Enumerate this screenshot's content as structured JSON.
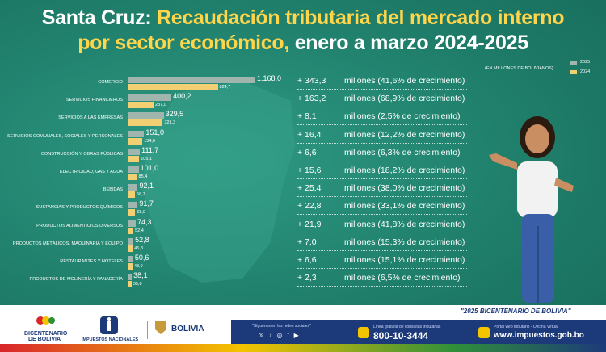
{
  "title": {
    "line1_white": "Santa Cruz:",
    "line1_yellow": "Recaudación tributaria del mercado interno",
    "line2_yellow": "por sector económico,",
    "line2_white": "enero a marzo 2024-2025"
  },
  "units": "(EN MILLONES DE BOLIVIANOS)",
  "legend": [
    {
      "label": "2025",
      "color": "#9fb5ae"
    },
    {
      "label": "2024",
      "color": "#f3cf73"
    }
  ],
  "chart_data": {
    "type": "bar",
    "orientation": "horizontal",
    "categories": [
      "COMERCIO",
      "SERVICIOS FINANCIEROS",
      "SERVICIOS A LAS EMPRESAS",
      "SERVICIOS COMUNALES, SOCIALES Y PERSONALES",
      "CONSTRUCCIÓN Y OBRAS PÚBLICAS",
      "ELECTRICIDAD, GAS Y AGUA",
      "BEBIDAS",
      "SUSTANCIAS Y PRODUCTOS QUÍMICOS",
      "PRODUCTOS ALIMENTICIOS DIVERSOS",
      "PRODUCTOS METÁLICOS, MAQUINARIA Y EQUIPO",
      "RESTAURANTES Y HOTELES",
      "PRODUCTOS DE MOLINERÍA Y PANADERÍA"
    ],
    "series": [
      {
        "name": "2025",
        "values": [
          1168.0,
          400.2,
          329.5,
          151.0,
          111.7,
          101.0,
          92.1,
          91.7,
          74.3,
          52.8,
          50.6,
          38.1
        ],
        "labels": [
          "1.168,0",
          "400,2",
          "329,5",
          "151,0",
          "111,7",
          "101,0",
          "92,1",
          "91,7",
          "74,3",
          "52,8",
          "50,6",
          "38,1"
        ]
      },
      {
        "name": "2024",
        "values": [
          824.7,
          237.0,
          321.3,
          134.6,
          105.1,
          85.4,
          66.7,
          68.9,
          52.4,
          45.8,
          43.9,
          35.8
        ],
        "labels": [
          "824,7",
          "237,0",
          "321,3",
          "134,6",
          "105,1",
          "85,4",
          "66,7",
          "68,9",
          "52,4",
          "45,8",
          "43,9",
          "35,8"
        ]
      }
    ],
    "growth": [
      {
        "diff": "+ 343,3",
        "text": "millones (41,6% de crecimiento)"
      },
      {
        "diff": "+ 163,2",
        "text": "millones (68,9% de crecimiento)"
      },
      {
        "diff": "+ 8,1",
        "text": "millones (2,5% de crecimiento)"
      },
      {
        "diff": "+ 16,4",
        "text": "millones (12,2% de crecimiento)"
      },
      {
        "diff": "+ 6,6",
        "text": "millones (6,3% de crecimiento)"
      },
      {
        "diff": "+ 15,6",
        "text": "millones (18,2% de crecimiento)"
      },
      {
        "diff": "+ 25,4",
        "text": "millones (38,0% de crecimiento)"
      },
      {
        "diff": "+ 22,8",
        "text": "millones (33,1% de crecimiento)"
      },
      {
        "diff": "+ 21,9",
        "text": "millones (41,8% de crecimiento)"
      },
      {
        "diff": "+ 7,0",
        "text": "millones (15,3% de crecimiento)"
      },
      {
        "diff": "+ 6,6",
        "text": "millones (15,1% de crecimiento)"
      },
      {
        "diff": "+ 2,3",
        "text": "millones (6,5% de crecimiento)"
      }
    ]
  },
  "footer": {
    "bicentenario": "\"2025 BICENTENARIO DE BOLIVIA\"",
    "logo_bicentenario": "BICENTENARIO DE BOLIVIA",
    "logo_impuestos": "IMPUESTOS NACIONALES",
    "logo_estado": "BOLIVIA",
    "social_text": "\"Síguenos en las redes sociales\"",
    "phone_label": "Línea gratuita de consultas tributarias",
    "phone": "800-10-3444",
    "web_label": "Portal web tributario - Oficina Virtual",
    "web": "www.impuestos.gob.bo"
  }
}
